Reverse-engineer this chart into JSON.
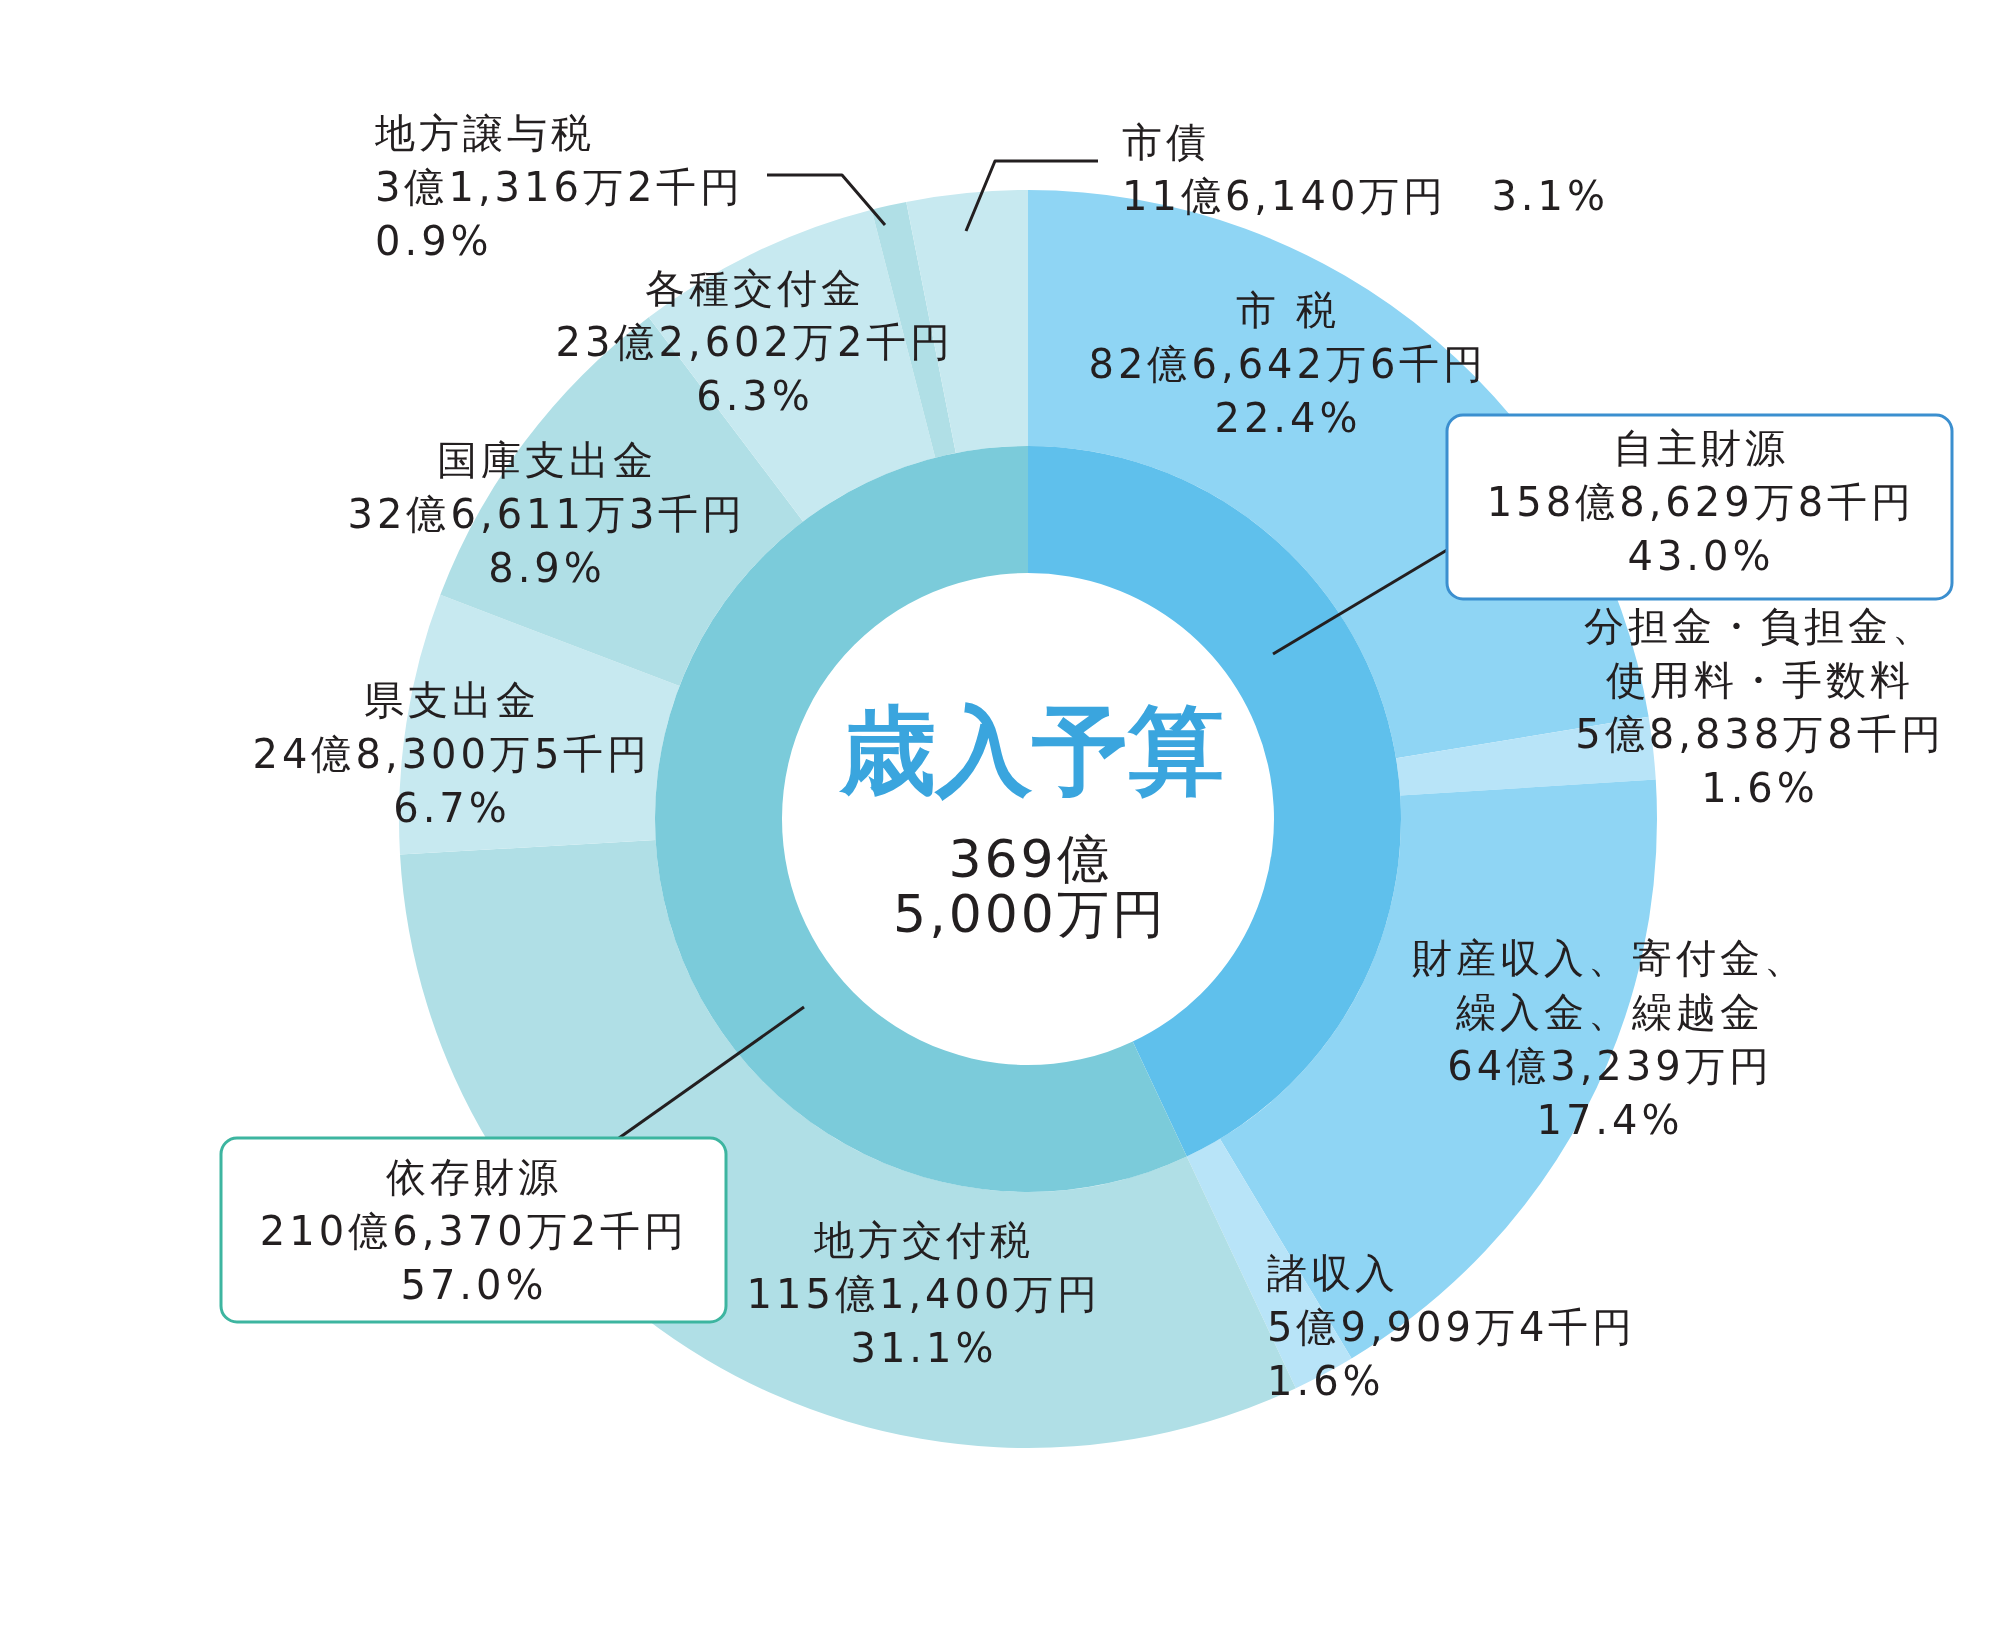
{
  "chart_data": [
    {
      "type": "donut",
      "title": "歳入予算",
      "subtitle": "369億\n5,000万円",
      "categories": [
        "自主財源",
        "依存財源"
      ],
      "values": [
        43.0,
        57.0
      ],
      "colors": [
        "#5fc0ec",
        "#7bcbda"
      ],
      "value_labels": [
        "158億8,629万8千円\n43.0%",
        "210億6,370万2千円\n57.0%"
      ]
    },
    {
      "type": "donut",
      "categories": [
        "市 税",
        "分担金・負担金、使用料・手数料",
        "財産収入、寄付金、繰入金、繰越金",
        "諸収入",
        "地方交付税",
        "県支出金",
        "国庫支出金",
        "各種交付金",
        "地方譲与税",
        "市債"
      ],
      "values": [
        22.4,
        1.6,
        17.4,
        1.6,
        31.1,
        6.7,
        8.9,
        6.3,
        0.9,
        3.1
      ],
      "colors": [
        "#8fd5f4",
        "#b8e4f8",
        "#8fd5f4",
        "#b8e4f8",
        "#b0dfe6",
        "#c7e9f0",
        "#b0dfe6",
        "#c7e9f0",
        "#b0dfe6",
        "#c7e9f0"
      ],
      "value_labels": [
        "82億6,642万6千円\n22.4%",
        "5億8,838万8千円\n1.6%",
        "64億3,239万円\n17.4%",
        "5億9,909万4千円\n1.6%",
        "115億1,400万円\n31.1%",
        "24億8,300万5千円\n6.7%",
        "32億6,611万3千円\n8.9%",
        "23億2,602万2千円\n6.3%",
        "3億1,316万2千円\n0.9%",
        "11億6,140万円　3.1%"
      ]
    }
  ]
}
